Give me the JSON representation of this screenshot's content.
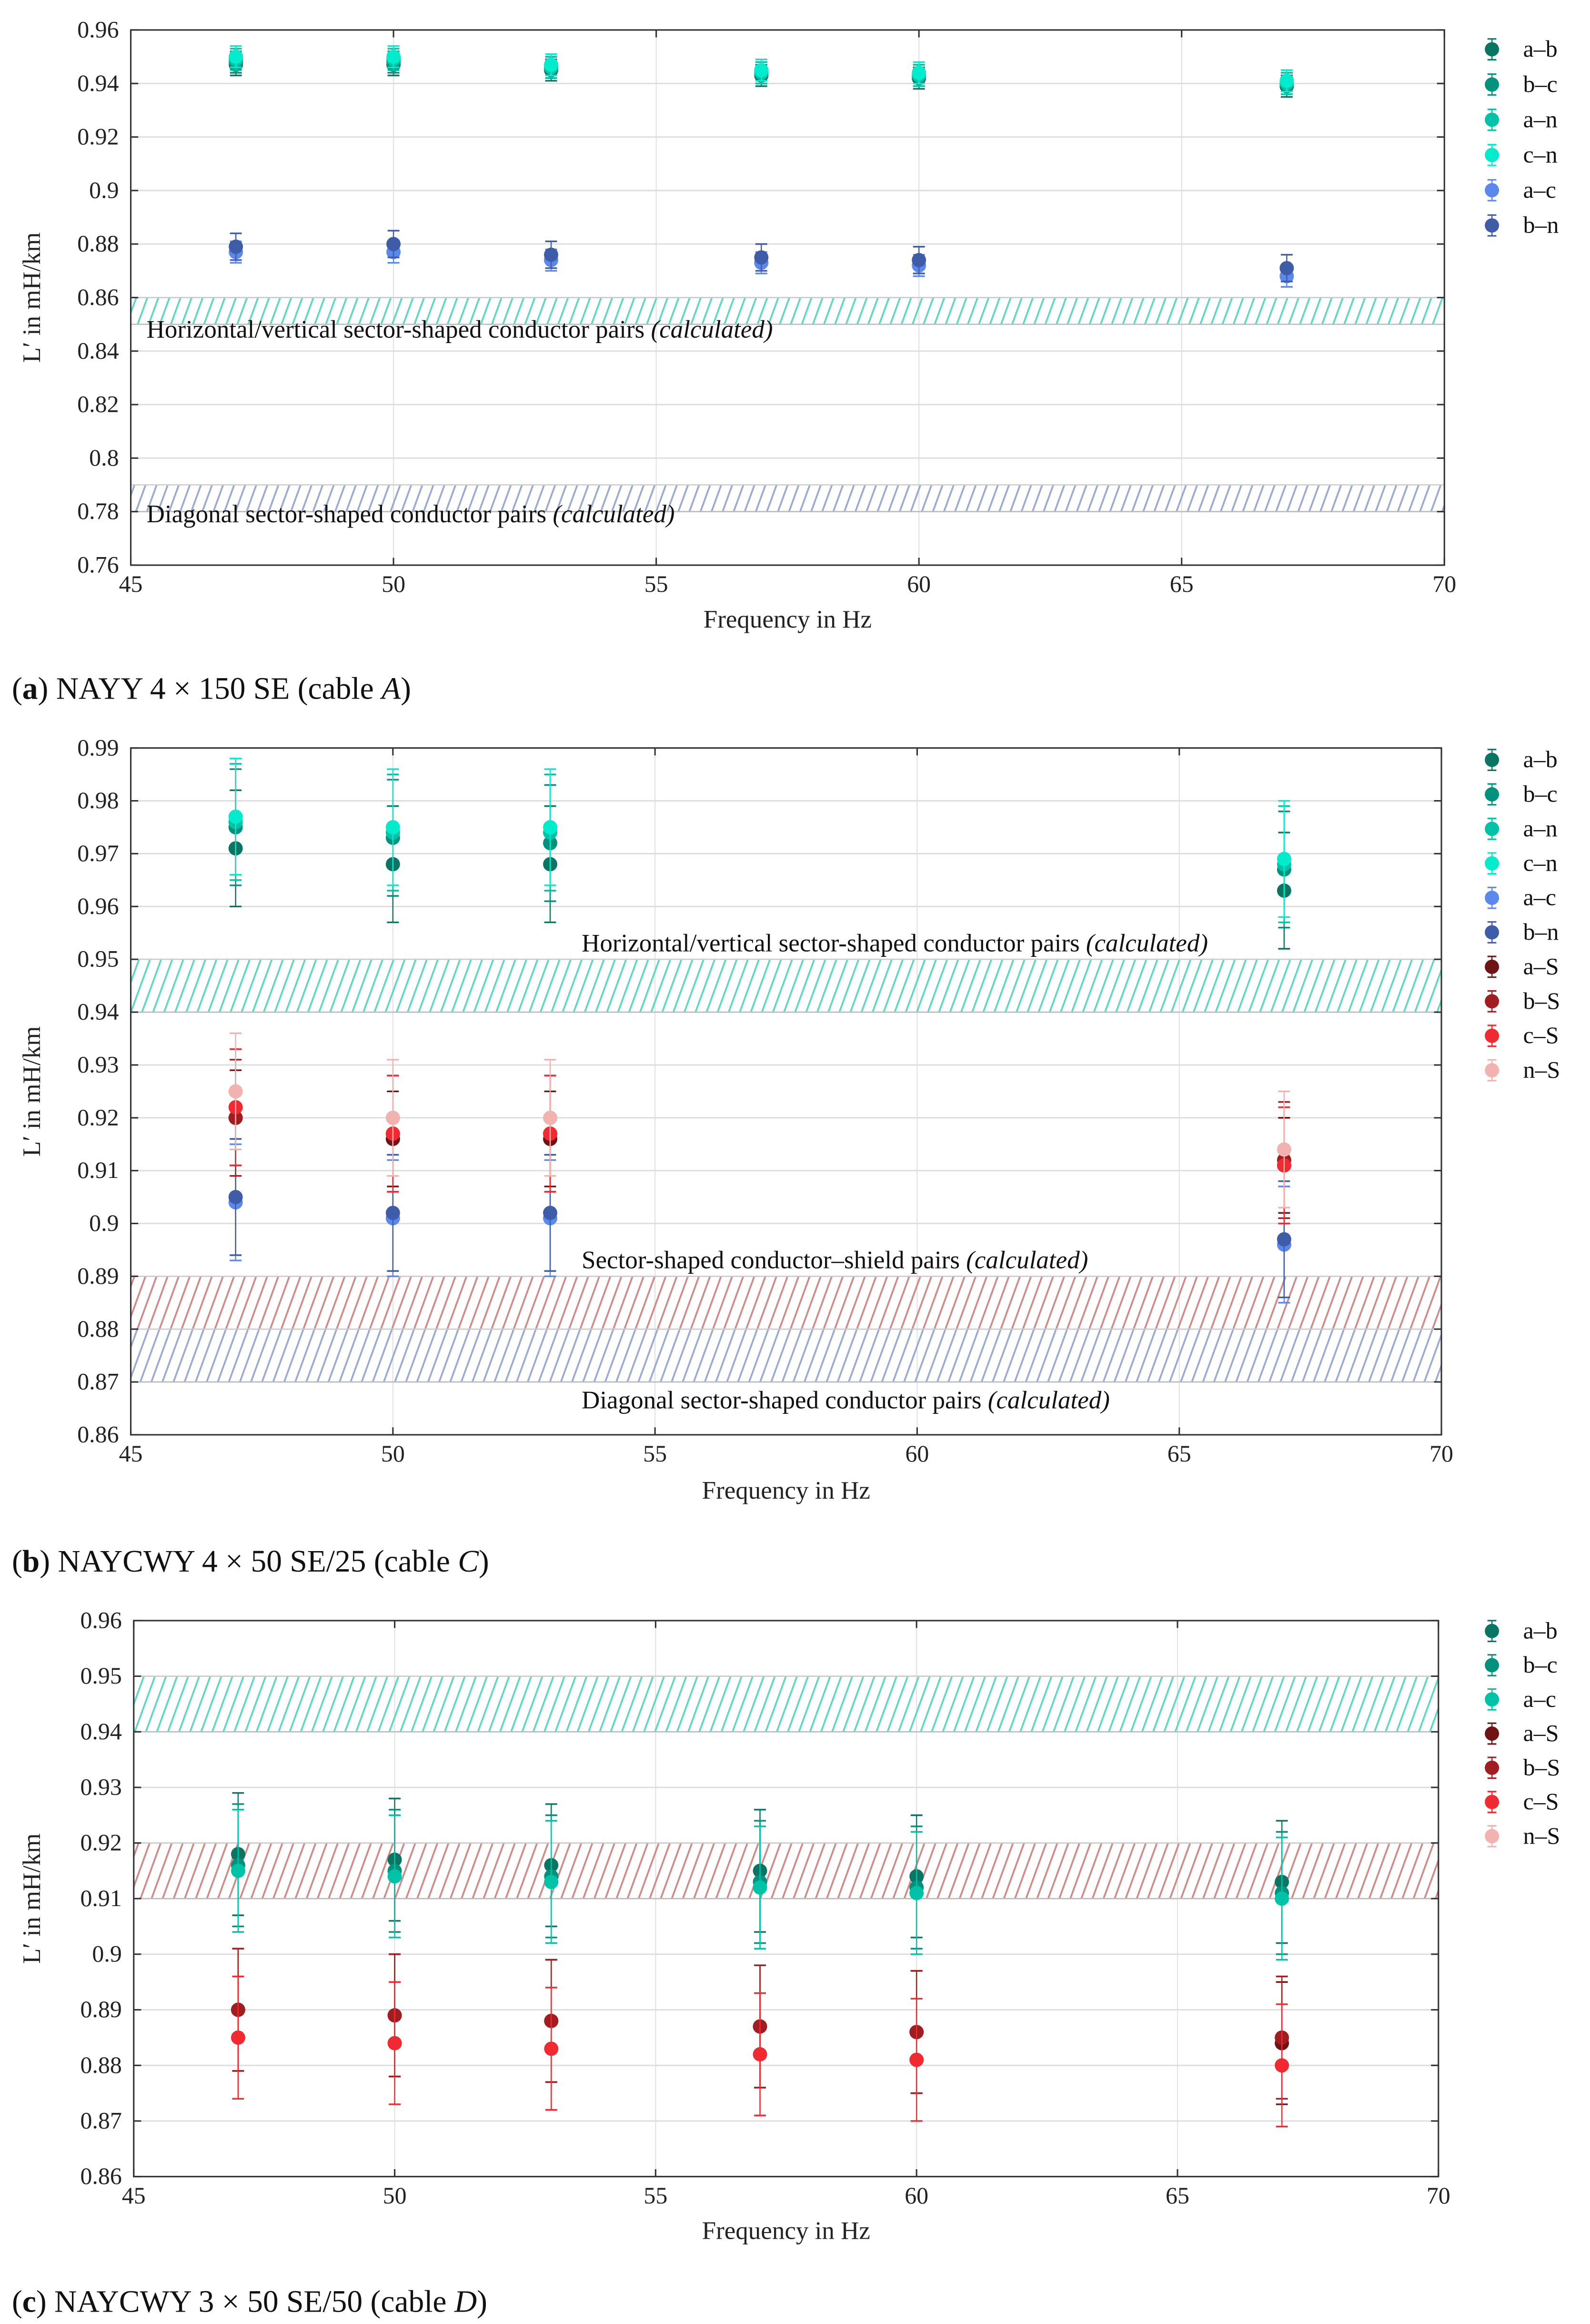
{
  "chart_data": [
    {
      "type": "scatter",
      "panel": "a",
      "caption": {
        "tag": "a",
        "text": "NAYY 4 × 150 SE (cable ",
        "cable": "A",
        "close": ")"
      },
      "xlabel": "Frequency in Hz",
      "ylabel": "L′ in mH/km",
      "xlim": [
        45,
        70
      ],
      "ylim": [
        0.76,
        0.96
      ],
      "xticks": [
        45,
        50,
        55,
        60,
        65,
        70
      ],
      "yticks": [
        0.76,
        0.78,
        0.8,
        0.82,
        0.84,
        0.86,
        0.88,
        0.9,
        0.92,
        0.94,
        0.96
      ],
      "ytick_labels": [
        "0.76",
        "0.78",
        "0.8",
        "0.82",
        "0.84",
        "0.86",
        "0.88",
        "0.9",
        "0.92",
        "0.94",
        "0.96"
      ],
      "grid": true,
      "legend_position": "outside-right",
      "x": [
        47,
        50,
        53,
        57,
        60,
        67
      ],
      "series": [
        {
          "name": "a–b",
          "color": "#0b7563",
          "values": [
            0.947,
            0.947,
            0.945,
            0.943,
            0.942,
            0.939
          ],
          "error": 0.004
        },
        {
          "name": "b–c",
          "color": "#00927c",
          "values": [
            0.948,
            0.948,
            0.946,
            0.944,
            0.943,
            0.94
          ],
          "error": 0.004
        },
        {
          "name": "a–n",
          "color": "#00c2a6",
          "values": [
            0.949,
            0.949,
            0.946,
            0.944,
            0.943,
            0.94
          ],
          "error": 0.004
        },
        {
          "name": "c–n",
          "color": "#00eccc",
          "values": [
            0.95,
            0.95,
            0.947,
            0.945,
            0.944,
            0.941
          ],
          "error": 0.004
        },
        {
          "name": "a–c",
          "color": "#5b88ec",
          "values": [
            0.877,
            0.877,
            0.874,
            0.873,
            0.872,
            0.868
          ],
          "error": 0.004
        },
        {
          "name": "b–n",
          "color": "#3f5ca8",
          "values": [
            0.879,
            0.88,
            0.876,
            0.875,
            0.874,
            0.871
          ],
          "error": 0.005
        }
      ],
      "bands": [
        {
          "range": [
            0.85,
            0.86
          ],
          "color": "#5fd8c2",
          "label": "Horizontal/vertical sector-shaped conductor pairs ",
          "label_italic": "(calculated)",
          "label_y": 0.845,
          "label_x": 45.3
        },
        {
          "range": [
            0.78,
            0.79
          ],
          "color": "#9aaad0",
          "label": "Diagonal sector-shaped conductor pairs ",
          "label_italic": "(calculated)",
          "label_y": 0.776,
          "label_x": 45.3
        }
      ]
    },
    {
      "type": "scatter",
      "panel": "b",
      "caption": {
        "tag": "b",
        "text": "NAYCWY 4 × 50 SE/25 (cable ",
        "cable": "C",
        "close": ")"
      },
      "xlabel": "Frequency in Hz",
      "ylabel": "L′ in mH/km",
      "xlim": [
        45,
        70
      ],
      "ylim": [
        0.86,
        0.99
      ],
      "xticks": [
        45,
        50,
        55,
        60,
        65,
        70
      ],
      "yticks": [
        0.86,
        0.87,
        0.88,
        0.89,
        0.9,
        0.91,
        0.92,
        0.93,
        0.94,
        0.95,
        0.96,
        0.97,
        0.98,
        0.99
      ],
      "ytick_labels": [
        "0.86",
        "0.87",
        "0.88",
        "0.89",
        "0.9",
        "0.91",
        "0.92",
        "0.93",
        "0.94",
        "0.95",
        "0.96",
        "0.97",
        "0.98",
        "0.99"
      ],
      "grid": true,
      "legend_position": "outside-right",
      "x": [
        47,
        50,
        53,
        67
      ],
      "series": [
        {
          "name": "a–b",
          "color": "#0b7563",
          "values": [
            0.971,
            0.968,
            0.968,
            0.963
          ],
          "error": 0.011
        },
        {
          "name": "b–c",
          "color": "#00927c",
          "values": [
            0.975,
            0.973,
            0.972,
            0.967
          ],
          "error": 0.011
        },
        {
          "name": "a–n",
          "color": "#00c2a6",
          "values": [
            0.976,
            0.974,
            0.974,
            0.968
          ],
          "error": 0.011
        },
        {
          "name": "c–n",
          "color": "#00eccc",
          "values": [
            0.977,
            0.975,
            0.975,
            0.969
          ],
          "error": 0.011
        },
        {
          "name": "a–c",
          "color": "#5b88ec",
          "values": [
            0.904,
            0.901,
            0.901,
            0.896
          ],
          "error": 0.011
        },
        {
          "name": "b–n",
          "color": "#3f5ca8",
          "values": [
            0.905,
            0.902,
            0.902,
            0.897
          ],
          "error": 0.011
        },
        {
          "name": "a–S",
          "color": "#6e1414",
          "values": [
            0.92,
            0.916,
            0.916,
            0.911
          ],
          "error": 0.009
        },
        {
          "name": "b–S",
          "color": "#a01e22",
          "values": [
            0.92,
            0.917,
            0.917,
            0.912
          ],
          "error": 0.011
        },
        {
          "name": "c–S",
          "color": "#f02a30",
          "values": [
            0.922,
            0.917,
            0.917,
            0.911
          ],
          "error": 0.011
        },
        {
          "name": "n–S",
          "color": "#f2b2b0",
          "values": [
            0.925,
            0.92,
            0.92,
            0.914
          ],
          "error": 0.011
        }
      ],
      "bands": [
        {
          "range": [
            0.94,
            0.95
          ],
          "color": "#5fd8c2",
          "label": "Horizontal/vertical sector-shaped conductor pairs ",
          "label_italic": "(calculated)",
          "label_y": 0.9515,
          "label_x": 53.6
        },
        {
          "range": [
            0.88,
            0.89
          ],
          "color": "#d08a88",
          "label": "Sector-shaped conductor–shield pairs ",
          "label_italic": "(calculated)",
          "label_y": 0.8915,
          "label_x": 53.6
        },
        {
          "range": [
            0.87,
            0.88
          ],
          "color": "#9aaad0",
          "label": "Diagonal sector-shaped conductor pairs ",
          "label_italic": "(calculated)",
          "label_y": 0.865,
          "label_x": 53.6
        }
      ]
    },
    {
      "type": "scatter",
      "panel": "c",
      "caption": {
        "tag": "c",
        "text": "NAYCWY 3 × 50 SE/50 (cable ",
        "cable": "D",
        "close": ")"
      },
      "xlabel": "Frequency in Hz",
      "ylabel": "L′ in mH/km",
      "xlim": [
        45,
        70
      ],
      "ylim": [
        0.86,
        0.96
      ],
      "xticks": [
        45,
        50,
        55,
        60,
        65,
        70
      ],
      "yticks": [
        0.86,
        0.87,
        0.88,
        0.89,
        0.9,
        0.91,
        0.92,
        0.93,
        0.94,
        0.95,
        0.96
      ],
      "ytick_labels": [
        "0.86",
        "0.87",
        "0.88",
        "0.89",
        "0.9",
        "0.91",
        "0.92",
        "0.93",
        "0.94",
        "0.95",
        "0.96"
      ],
      "grid": true,
      "legend_position": "outside-right",
      "x": [
        47,
        50,
        53,
        57,
        60,
        67
      ],
      "series": [
        {
          "name": "a–b",
          "color": "#0b7563",
          "values": [
            0.918,
            0.917,
            0.916,
            0.915,
            0.914,
            0.913
          ],
          "error": 0.011
        },
        {
          "name": "b–c",
          "color": "#00927c",
          "values": [
            0.916,
            0.915,
            0.914,
            0.913,
            0.912,
            0.911
          ],
          "error": 0.011
        },
        {
          "name": "a–c",
          "color": "#00c2a6",
          "values": [
            0.915,
            0.914,
            0.913,
            0.912,
            0.911,
            0.91
          ],
          "error": 0.011
        },
        {
          "name": "a–S",
          "color": "#6e1414",
          "values": [
            0.89,
            0.889,
            0.888,
            0.887,
            0.886,
            0.884
          ],
          "error": 0.011
        },
        {
          "name": "b–S",
          "color": "#a01e22",
          "values": [
            0.89,
            0.889,
            0.888,
            0.887,
            0.886,
            0.885
          ],
          "error": 0.011
        },
        {
          "name": "c–S",
          "color": "#f02a30",
          "values": [
            0.885,
            0.884,
            0.883,
            0.882,
            0.881,
            0.88
          ],
          "error": 0.011
        },
        {
          "name": "n–S",
          "color": "#f2b2b0",
          "values": [],
          "error": 0.011
        }
      ],
      "bands": [
        {
          "range": [
            0.94,
            0.95
          ],
          "color": "#5fd8c2"
        },
        {
          "range": [
            0.91,
            0.92
          ],
          "color": "#d08a88"
        }
      ]
    }
  ]
}
